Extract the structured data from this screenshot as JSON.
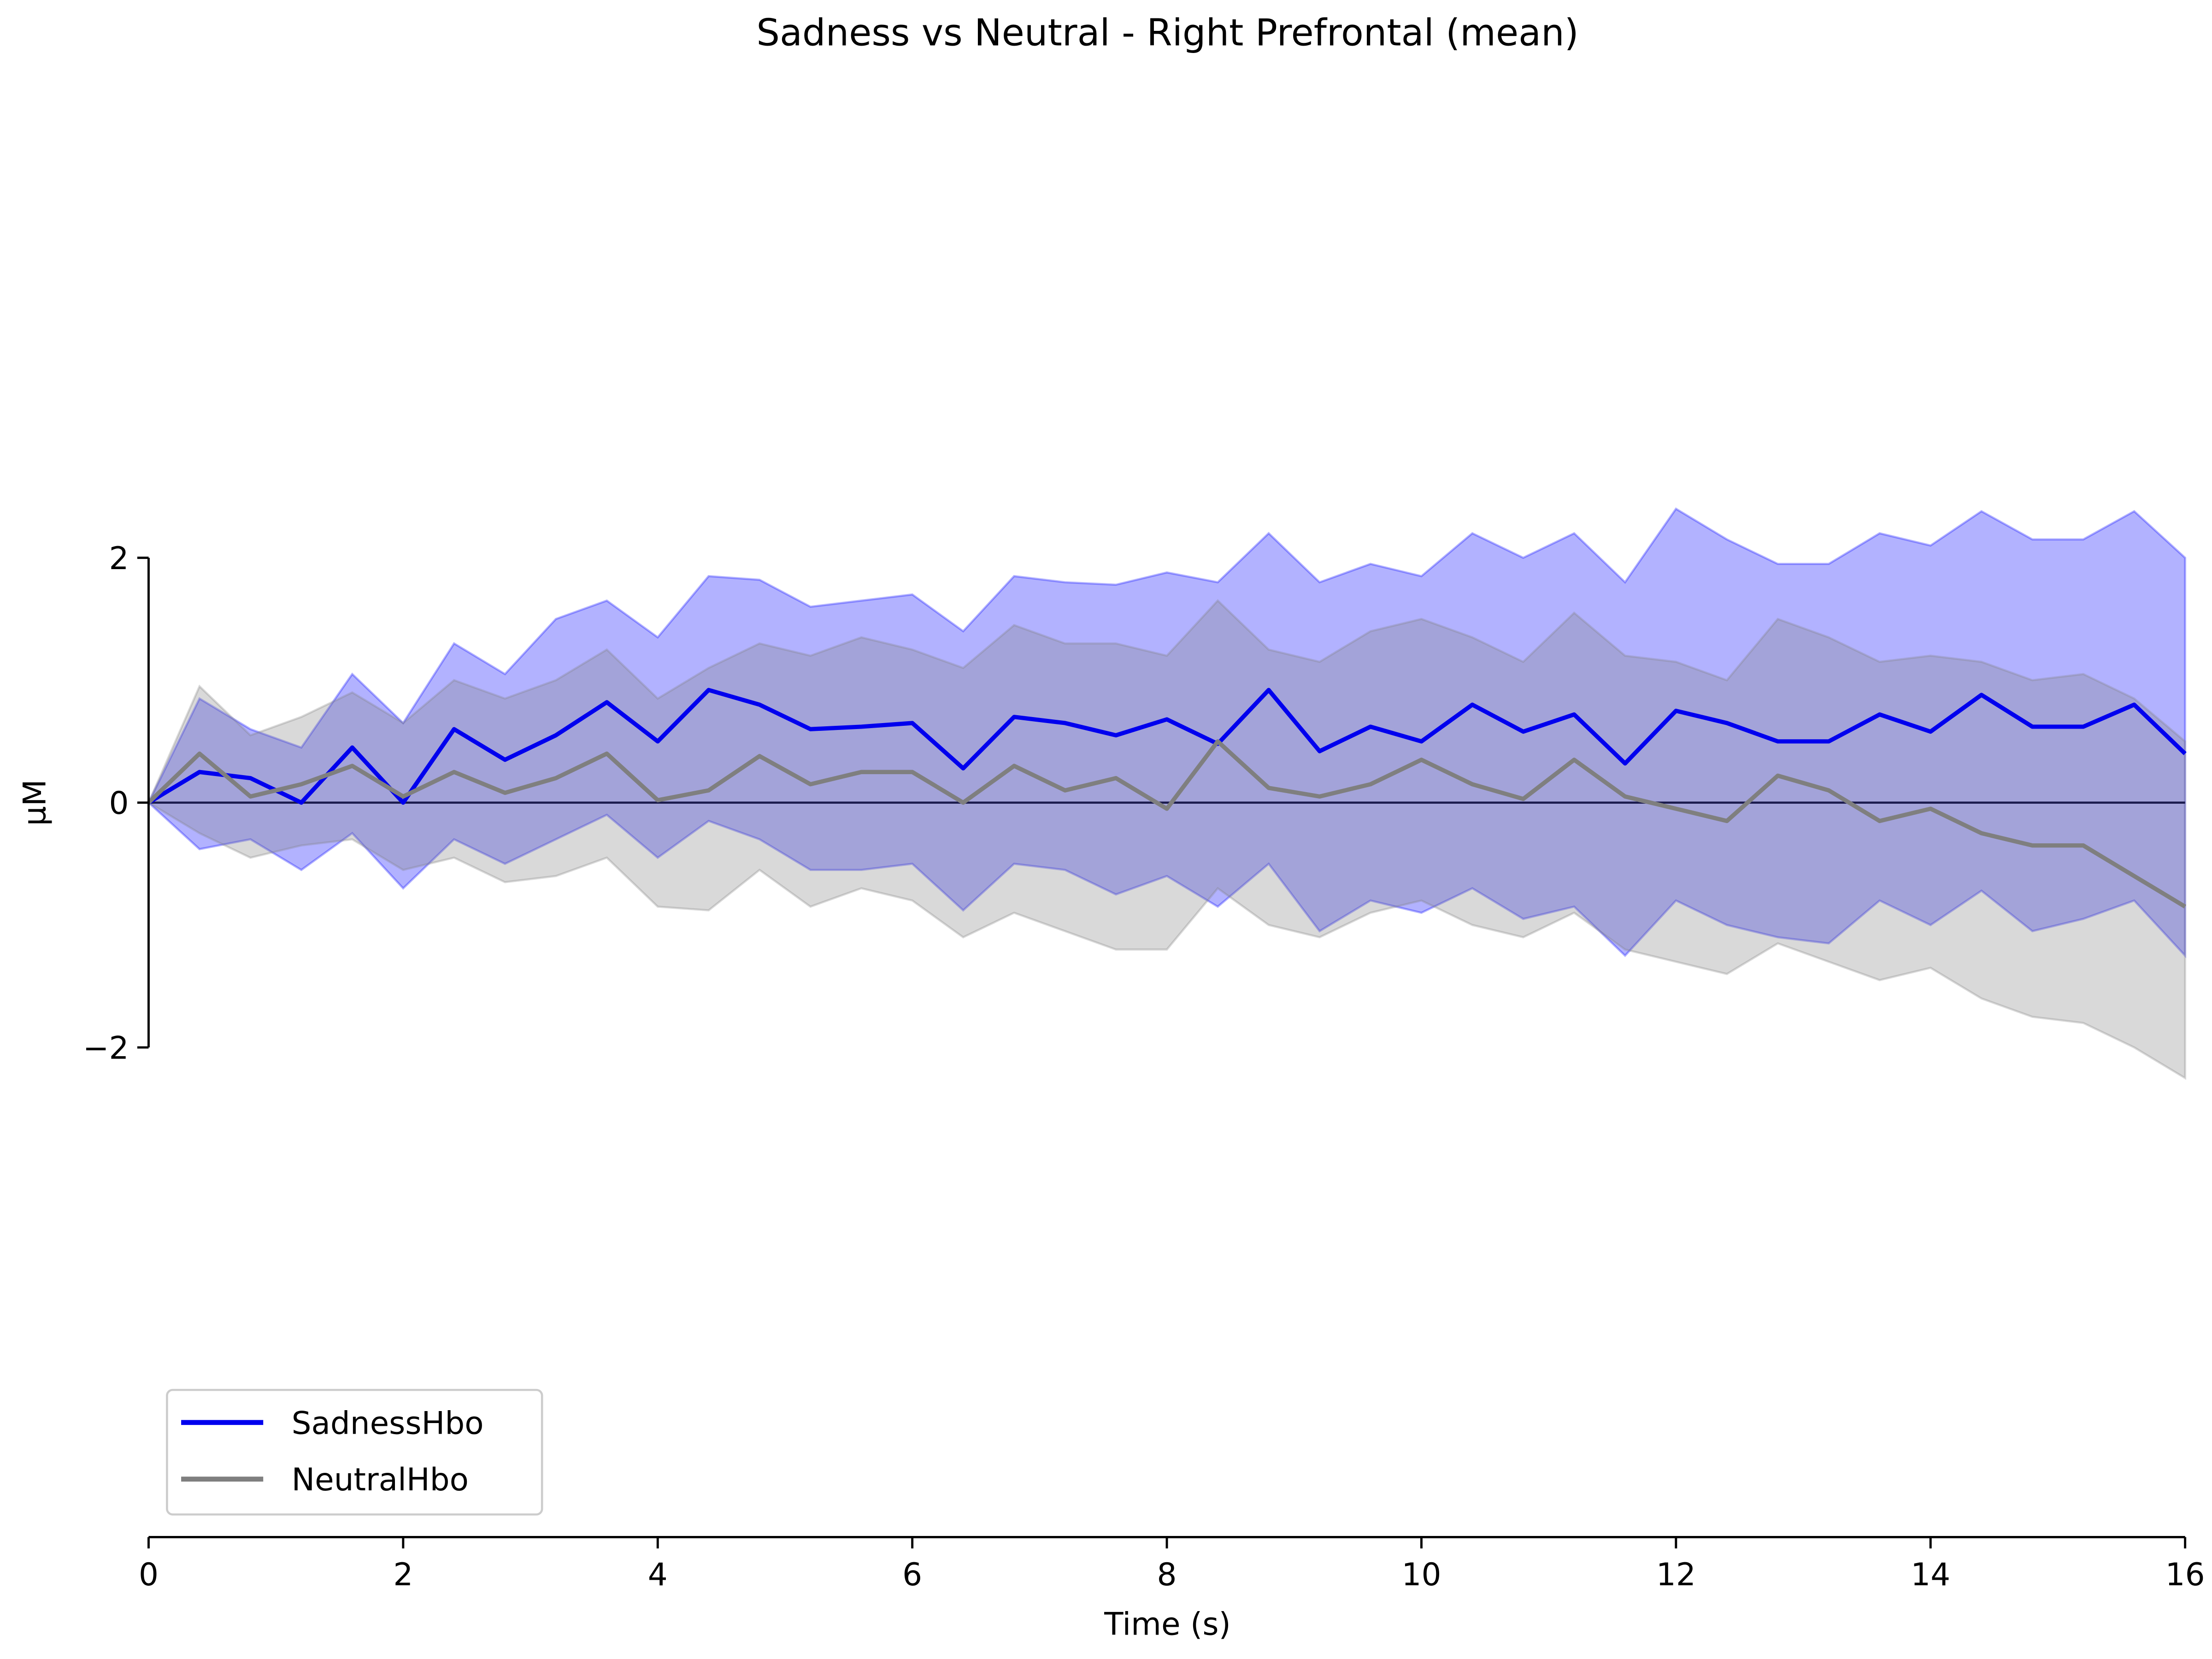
{
  "chart_data": {
    "type": "line",
    "title": "Sadness vs Neutral - Right Prefrontal (mean)",
    "xlabel": "Time (s)",
    "ylabel": "µM",
    "x": [
      0,
      0.4,
      0.8,
      1.2,
      1.6,
      2.0,
      2.4,
      2.8,
      3.2,
      3.6,
      4.0,
      4.4,
      4.8,
      5.2,
      5.6,
      6.0,
      6.4,
      6.8,
      7.2,
      7.6,
      8.0,
      8.4,
      8.8,
      9.2,
      9.6,
      10.0,
      10.4,
      10.8,
      11.2,
      11.6,
      12.0,
      12.4,
      12.8,
      13.2,
      13.6,
      14.0,
      14.4,
      14.8,
      15.2,
      15.6,
      16.0
    ],
    "series": [
      {
        "name": "SadnessHbo",
        "color": "#0000ee",
        "band_color": "#0000ff",
        "values": [
          0,
          0.25,
          0.2,
          0.0,
          0.45,
          0.0,
          0.6,
          0.35,
          0.55,
          0.82,
          0.5,
          0.92,
          0.8,
          0.6,
          0.62,
          0.65,
          0.28,
          0.7,
          0.65,
          0.55,
          0.68,
          0.48,
          0.92,
          0.42,
          0.62,
          0.5,
          0.8,
          0.58,
          0.72,
          0.32,
          0.75,
          0.65,
          0.5,
          0.5,
          0.72,
          0.58,
          0.88,
          0.62,
          0.62,
          0.8,
          0.4
        ],
        "upper": [
          0,
          0.85,
          0.6,
          0.45,
          1.05,
          0.65,
          1.3,
          1.05,
          1.5,
          1.65,
          1.35,
          1.85,
          1.82,
          1.6,
          1.65,
          1.7,
          1.4,
          1.85,
          1.8,
          1.78,
          1.88,
          1.8,
          2.2,
          1.8,
          1.95,
          1.85,
          2.2,
          2.0,
          2.2,
          1.8,
          2.4,
          2.15,
          1.95,
          1.95,
          2.2,
          2.1,
          2.38,
          2.15,
          2.15,
          2.38,
          2.0
        ],
        "lower": [
          0,
          -0.38,
          -0.3,
          -0.55,
          -0.25,
          -0.7,
          -0.3,
          -0.5,
          -0.3,
          -0.1,
          -0.45,
          -0.15,
          -0.3,
          -0.55,
          -0.55,
          -0.5,
          -0.88,
          -0.5,
          -0.55,
          -0.75,
          -0.6,
          -0.85,
          -0.5,
          -1.05,
          -0.8,
          -0.9,
          -0.7,
          -0.95,
          -0.85,
          -1.25,
          -0.8,
          -1.0,
          -1.1,
          -1.15,
          -0.8,
          -1.0,
          -0.72,
          -1.05,
          -0.95,
          -0.8,
          -1.25
        ]
      },
      {
        "name": "NeutralHbo",
        "color": "#7f7f7f",
        "band_color": "#808080",
        "values": [
          0,
          0.4,
          0.05,
          0.15,
          0.3,
          0.05,
          0.25,
          0.08,
          0.2,
          0.4,
          0.02,
          0.1,
          0.38,
          0.15,
          0.25,
          0.25,
          0.0,
          0.3,
          0.1,
          0.2,
          -0.05,
          0.5,
          0.12,
          0.05,
          0.15,
          0.35,
          0.15,
          0.03,
          0.35,
          0.05,
          -0.05,
          -0.15,
          0.22,
          0.1,
          -0.15,
          -0.05,
          -0.25,
          -0.35,
          -0.35,
          -0.6,
          -0.85
        ],
        "upper": [
          0,
          0.95,
          0.55,
          0.7,
          0.9,
          0.65,
          1.0,
          0.85,
          1.0,
          1.25,
          0.85,
          1.1,
          1.3,
          1.2,
          1.35,
          1.25,
          1.1,
          1.45,
          1.3,
          1.3,
          1.2,
          1.65,
          1.25,
          1.15,
          1.4,
          1.5,
          1.35,
          1.15,
          1.55,
          1.2,
          1.15,
          1.0,
          1.5,
          1.35,
          1.15,
          1.2,
          1.15,
          1.0,
          1.05,
          0.85,
          0.5
        ],
        "lower": [
          0,
          -0.25,
          -0.45,
          -0.35,
          -0.3,
          -0.55,
          -0.45,
          -0.65,
          -0.6,
          -0.45,
          -0.85,
          -0.88,
          -0.55,
          -0.85,
          -0.7,
          -0.8,
          -1.1,
          -0.9,
          -1.05,
          -1.2,
          -1.2,
          -0.7,
          -1.0,
          -1.1,
          -0.9,
          -0.8,
          -1.0,
          -1.1,
          -0.9,
          -1.2,
          -1.3,
          -1.4,
          -1.15,
          -1.3,
          -1.45,
          -1.35,
          -1.6,
          -1.75,
          -1.8,
          -2.0,
          -2.25
        ]
      }
    ],
    "band_opacity": 0.3,
    "hline": 0,
    "hline_color": "#1a1a4d",
    "xlim": [
      0,
      16
    ],
    "xticks": [
      0,
      2,
      4,
      6,
      8,
      10,
      12,
      14,
      16
    ],
    "ylim": [
      -6,
      6
    ],
    "yticks": [
      {
        "value": -2,
        "label": "−2"
      },
      0,
      2
    ],
    "legend": "lower left"
  }
}
